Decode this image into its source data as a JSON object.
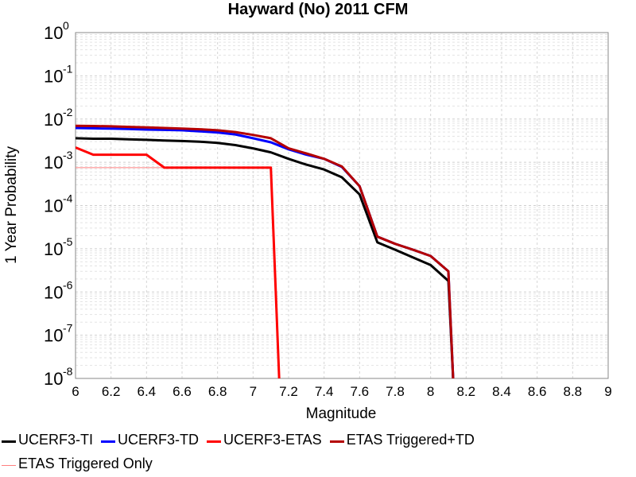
{
  "chart_data": {
    "type": "line",
    "title": "Hayward (No) 2011 CFM",
    "xlabel": "Magnitude",
    "ylabel": "1 Year Probability",
    "xlim": [
      6,
      9
    ],
    "ylim": [
      1e-08,
      1
    ],
    "yscale": "log",
    "grid": true,
    "legend_position": "bottom",
    "x_ticks": [
      "6",
      "6.2",
      "6.4",
      "6.6",
      "6.8",
      "7",
      "7.2",
      "7.4",
      "7.6",
      "7.8",
      "8",
      "8.2",
      "8.4",
      "8.6",
      "8.8",
      "9"
    ],
    "y_ticks": [
      {
        "base": "10",
        "exp": "0",
        "value": 1
      },
      {
        "base": "10",
        "exp": "-1",
        "value": 0.1
      },
      {
        "base": "10",
        "exp": "-2",
        "value": 0.01
      },
      {
        "base": "10",
        "exp": "-3",
        "value": 0.001
      },
      {
        "base": "10",
        "exp": "-4",
        "value": 0.0001
      },
      {
        "base": "10",
        "exp": "-5",
        "value": 1e-05
      },
      {
        "base": "10",
        "exp": "-6",
        "value": 1e-06
      },
      {
        "base": "10",
        "exp": "-7",
        "value": 1e-07
      },
      {
        "base": "10",
        "exp": "-8",
        "value": 1e-08
      }
    ],
    "series": [
      {
        "name": "UCERF3-TI",
        "color": "#000000",
        "width": 3,
        "x": [
          6.0,
          6.1,
          6.2,
          6.3,
          6.4,
          6.5,
          6.6,
          6.7,
          6.8,
          6.9,
          7.0,
          7.1,
          7.2,
          7.3,
          7.4,
          7.5,
          7.6,
          7.7,
          7.8,
          7.9,
          8.0,
          8.1,
          8.13
        ],
        "y": [
          0.0036,
          0.0035,
          0.0035,
          0.0034,
          0.0033,
          0.0032,
          0.0031,
          0.003,
          0.0028,
          0.0025,
          0.0021,
          0.0017,
          0.0012,
          0.00088,
          0.00068,
          0.00045,
          0.00018,
          1.4e-05,
          9.5e-06,
          6.3e-06,
          4.2e-06,
          1.8e-06,
          5e-09
        ]
      },
      {
        "name": "UCERF3-TD",
        "color": "#0000ff",
        "width": 3,
        "x": [
          6.0,
          6.1,
          6.2,
          6.3,
          6.4,
          6.5,
          6.6,
          6.7,
          6.8,
          6.9,
          7.0,
          7.1,
          7.2,
          7.3,
          7.4,
          7.5,
          7.6,
          7.7,
          7.8,
          7.9,
          8.0,
          8.1,
          8.13
        ],
        "y": [
          0.0062,
          0.0061,
          0.006,
          0.0059,
          0.0057,
          0.0056,
          0.0055,
          0.0052,
          0.0049,
          0.0044,
          0.0036,
          0.0029,
          0.002,
          0.0015,
          0.0012,
          0.00078,
          0.00028,
          1.9e-05,
          1.3e-05,
          9.5e-06,
          6.8e-06,
          3e-06,
          5e-09
        ]
      },
      {
        "name": "UCERF3-ETAS",
        "color": "#ff0000",
        "width": 3,
        "x": [
          6.0,
          6.1,
          6.2,
          6.3,
          6.4,
          6.5,
          6.6,
          6.7,
          6.8,
          6.9,
          7.0,
          7.1,
          7.15
        ],
        "y": [
          0.0022,
          0.0015,
          0.0015,
          0.0015,
          0.0015,
          0.00075,
          0.00075,
          0.00075,
          0.00075,
          0.00075,
          0.00075,
          0.00075,
          5e-09
        ]
      },
      {
        "name": "ETAS Triggered+TD",
        "color": "#b40000",
        "width": 3,
        "x": [
          6.0,
          6.1,
          6.2,
          6.3,
          6.4,
          6.5,
          6.6,
          6.7,
          6.8,
          6.9,
          7.0,
          7.1,
          7.2,
          7.3,
          7.4,
          7.5,
          7.6,
          7.7,
          7.8,
          7.9,
          8.0,
          8.1,
          8.13
        ],
        "y": [
          0.007,
          0.0069,
          0.0068,
          0.0066,
          0.0064,
          0.0062,
          0.006,
          0.0058,
          0.0055,
          0.005,
          0.0043,
          0.0036,
          0.0021,
          0.0016,
          0.0012,
          0.0008,
          0.00028,
          1.9e-05,
          1.3e-05,
          9.5e-06,
          6.8e-06,
          3e-06,
          5e-09
        ]
      },
      {
        "name": "ETAS Triggered Only",
        "color": "#ff8080",
        "width": 1,
        "x": [
          6.0,
          7.1
        ],
        "y": [
          0.00075,
          0.00075
        ]
      }
    ]
  },
  "legend": {
    "rows": [
      [
        {
          "label": "UCERF3-TI",
          "color": "#000000",
          "thin": false
        },
        {
          "label": "UCERF3-TD",
          "color": "#0000ff",
          "thin": false
        },
        {
          "label": "UCERF3-ETAS",
          "color": "#ff0000",
          "thin": false
        },
        {
          "label": "ETAS Triggered+TD",
          "color": "#b40000",
          "thin": false
        }
      ],
      [
        {
          "label": "ETAS Triggered Only",
          "color": "#ff8080",
          "thin": true
        }
      ]
    ]
  }
}
